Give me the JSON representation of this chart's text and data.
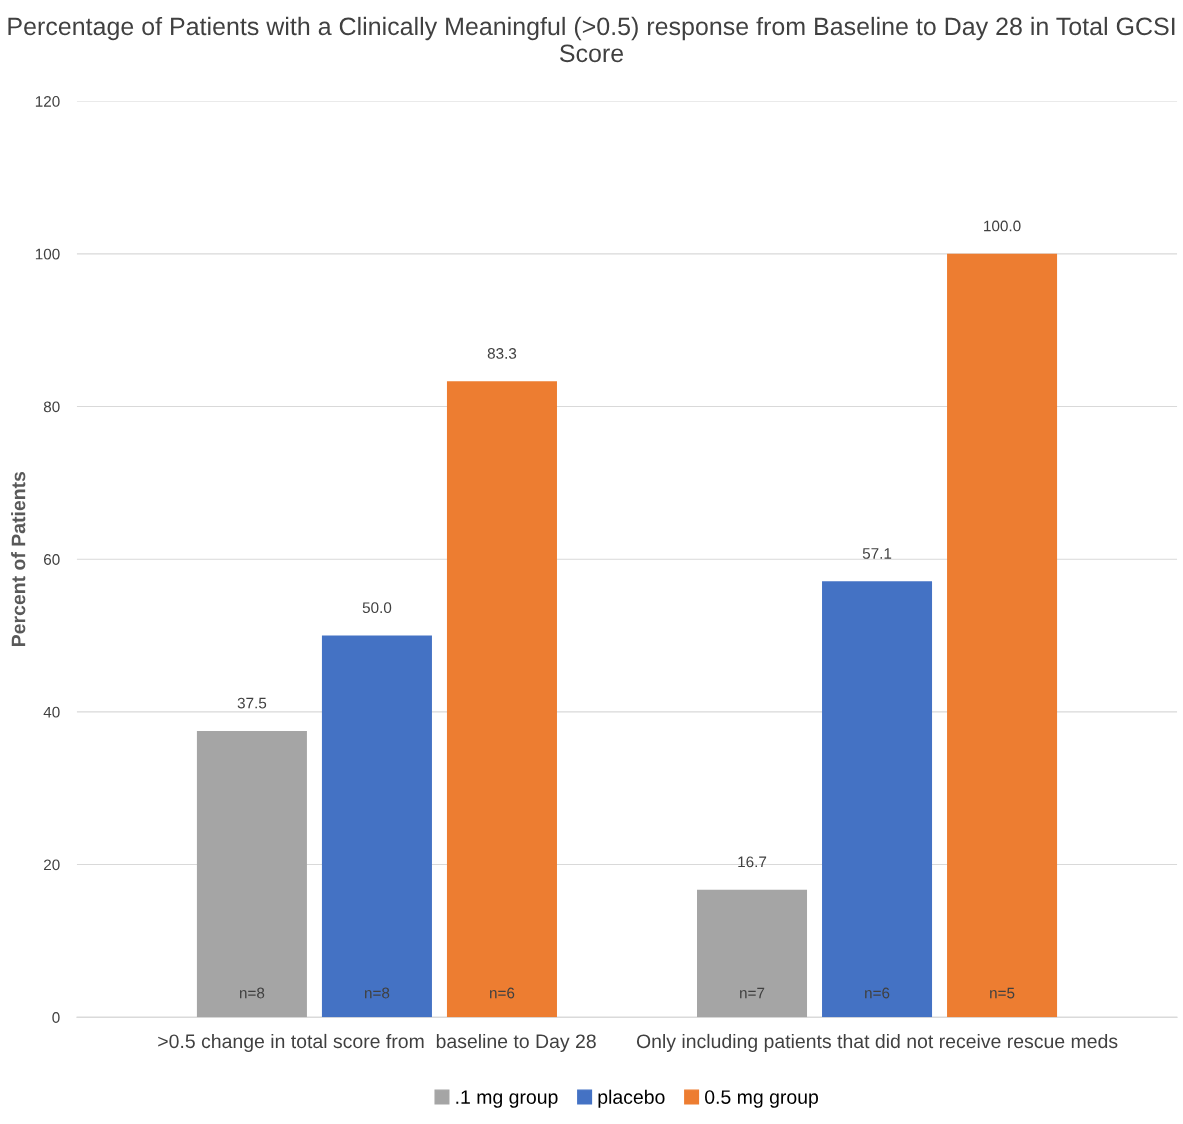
{
  "chart_data": {
    "type": "bar",
    "title": "Percentage of Patients with a Clinically Meaningful (>0.5) response from Baseline to Day 28 in Total GCSI Score",
    "ylabel": "Percent of Patients",
    "categories": [
      ">0.5 change in total score from  baseline to Day 28",
      "Only including patients that did not receive rescue meds"
    ],
    "series": [
      {
        "name": ".1 mg group",
        "color": "#a5a5a5",
        "values": [
          37.5,
          16.7
        ],
        "value_labels": [
          "37.5",
          "16.7"
        ]
      },
      {
        "name": "placebo",
        "color": "#4472c4",
        "values": [
          50.0,
          57.1
        ],
        "value_labels": [
          "50.0",
          "57.1"
        ]
      },
      {
        "name": "0.5 mg group",
        "color": "#ed7d31",
        "values": [
          83.3,
          100.0
        ],
        "value_labels": [
          "83.3",
          "100.0"
        ]
      }
    ],
    "annotations": [
      "n=8",
      "n=8",
      "n=6",
      "n=7",
      "n=6",
      "n=5"
    ],
    "ylim": [
      0,
      120
    ],
    "yticks": [
      0,
      20,
      40,
      60,
      80,
      100,
      120
    ],
    "grid": "y",
    "legend": "bottom"
  }
}
